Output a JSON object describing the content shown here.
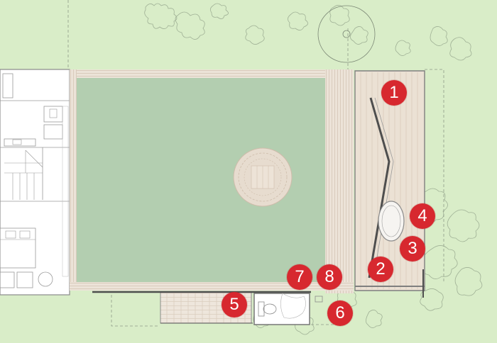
{
  "plan": {
    "colors": {
      "lawn": "#d9edc8",
      "pool": "#b3ceb0",
      "deck": "#eae0d4",
      "deck_line": "#c9b8a6",
      "wall": "#8a8a8a",
      "marker": "#d7282f",
      "tree_outline": "#a3b49a"
    },
    "markers": [
      {
        "id": "1",
        "label": "1"
      },
      {
        "id": "2",
        "label": "2"
      },
      {
        "id": "3",
        "label": "3"
      },
      {
        "id": "4",
        "label": "4"
      },
      {
        "id": "5",
        "label": "5"
      },
      {
        "id": "6",
        "label": "6"
      },
      {
        "id": "7",
        "label": "7"
      },
      {
        "id": "8",
        "label": "8"
      }
    ]
  }
}
